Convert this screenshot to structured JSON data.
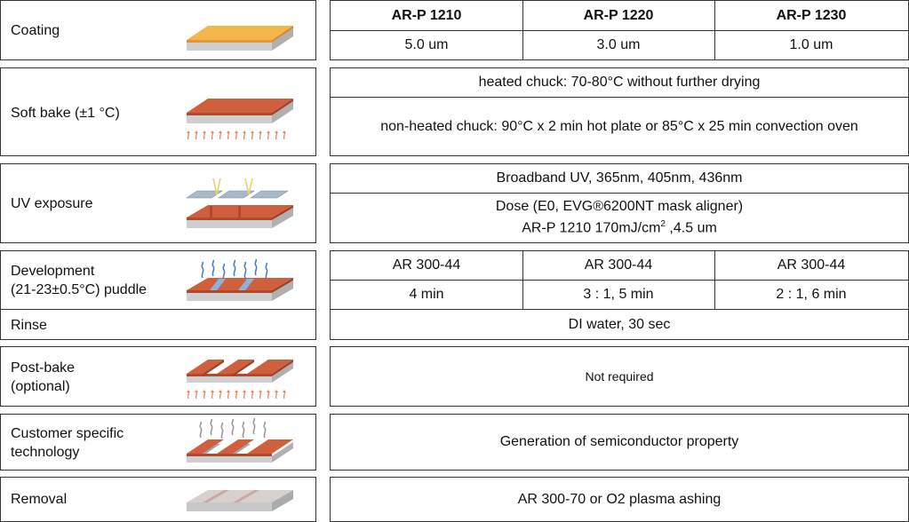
{
  "steps": {
    "coating": "Coating",
    "soft_bake": "Soft bake (±1 °C)",
    "uv_exposure": "UV exposure",
    "development_1": "Development",
    "development_2": "(21-23±0.5°C) puddle",
    "rinse": "Rinse",
    "post_bake_1": "Post-bake",
    "post_bake_2": "(optional)",
    "customer_1": "Customer specific",
    "customer_2": "technology",
    "removal": "Removal"
  },
  "products": [
    "AR-P 1210",
    "AR-P 1220",
    "AR-P 1230"
  ],
  "thickness": [
    "5.0 um",
    "3.0 um",
    "1.0 um"
  ],
  "soft_bake": {
    "heated": "heated chuck: 70-80°C without further drying",
    "non_heated": "non-heated chuck:  90°C x 2 min hot plate or 85°C x 25 min convection oven"
  },
  "uv": {
    "broadband": "Broadband UV, 365nm, 405nm, 436nm",
    "dose_line1": "Dose (E0, EVG®6200NT mask aligner)",
    "dose_line2_a": "AR-P 1210 170mJ/cm",
    "dose_sup": "2",
    "dose_line2_b": " ,4.5 um"
  },
  "development": {
    "developers": [
      "AR 300-44",
      "AR 300-44",
      "AR 300-44"
    ],
    "times": [
      "4 min",
      "3 : 1, 5 min",
      "2 : 1, 6 min"
    ]
  },
  "rinse": "DI water, 30 sec",
  "post_bake": "Not required",
  "customer": "Generation of semiconductor property",
  "removal": "AR 300-70 or O2 plasma ashing",
  "colors": {
    "resist_yellow": "#f2b64a",
    "resist_red": "#c9573a",
    "substrate": "#c8c8c8",
    "heat_arrow": "#e9885a",
    "mask": "#a9b9c8",
    "uv_ray": "#e8d070",
    "developer": "#4a7fc0",
    "vapor": "#999999",
    "removal_stripe": "#c9a9a0"
  }
}
